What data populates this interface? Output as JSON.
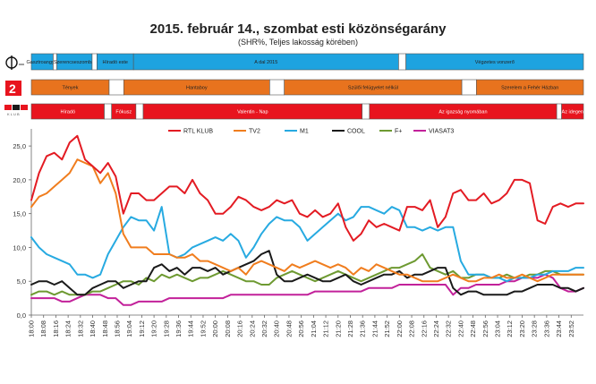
{
  "chart_data": {
    "type": "line",
    "title": "2015. február 14., szombat esti közönségarány",
    "subtitle": "(SHR%, Teljes lakosság körében)",
    "xlabel": "",
    "ylabel": "",
    "ylim": [
      0,
      27
    ],
    "yticks": [
      "0,0",
      "5,0",
      "10,0",
      "15,0",
      "20,0",
      "25,0"
    ],
    "grid": false,
    "legend_position": "top-center",
    "x_tick_labels": [
      "18:00",
      "18:08",
      "18:16",
      "18:24",
      "18:32",
      "18:40",
      "18:48",
      "18:56",
      "19:04",
      "19:12",
      "19:20",
      "19:28",
      "19:36",
      "19:44",
      "19:52",
      "20:00",
      "20:08",
      "20:16",
      "20:24",
      "20:32",
      "20:40",
      "20:48",
      "20:56",
      "21:04",
      "21:12",
      "21:20",
      "21:28",
      "21:36",
      "21:44",
      "21:52",
      "22:00",
      "22:08",
      "22:16",
      "22:24",
      "22:32",
      "22:40",
      "22:48",
      "22:56",
      "23:04",
      "23:12",
      "23:20",
      "23:28",
      "23:36",
      "23:44",
      "23:52"
    ],
    "x_minutes": [
      0,
      5,
      10,
      15,
      20,
      25,
      30,
      35,
      40,
      45,
      50,
      55,
      60,
      65,
      70,
      75,
      80,
      85,
      90,
      95,
      100,
      105,
      110,
      115,
      120,
      125,
      130,
      135,
      140,
      145,
      150,
      155,
      160,
      165,
      170,
      175,
      180,
      185,
      190,
      195,
      200,
      205,
      210,
      215,
      220,
      225,
      230,
      235,
      240,
      245,
      250,
      255,
      260,
      265,
      270,
      275,
      280,
      285,
      290,
      295,
      300,
      305,
      310,
      315,
      320,
      325,
      330,
      335,
      340,
      345,
      350,
      355,
      360
    ],
    "series": [
      {
        "name": "RTL KLUB",
        "color": "#e31b23",
        "values": [
          17,
          21,
          23.5,
          24,
          23,
          25.5,
          26.5,
          23,
          22,
          21,
          22.5,
          20.5,
          15,
          18,
          18,
          17,
          17,
          18,
          19,
          19,
          18,
          20,
          18,
          17,
          15,
          15,
          16,
          17.5,
          17,
          16,
          15.5,
          16,
          17,
          16.5,
          17,
          15,
          14.5,
          15.5,
          14.5,
          15,
          16.5,
          13,
          11,
          12,
          14,
          13,
          13.5,
          13,
          12.5,
          16,
          16,
          15.5,
          17,
          13,
          14.5,
          18,
          18.5,
          17,
          17,
          18,
          16.5,
          17,
          18,
          20,
          20,
          19.5,
          14,
          13.5,
          16,
          16.5,
          16,
          16.5,
          16.5
        ]
      },
      {
        "name": "TV2",
        "color": "#f07d1e",
        "values": [
          16,
          17.5,
          18,
          19,
          20,
          21,
          23,
          22.5,
          22,
          19.5,
          21,
          18,
          12,
          10,
          10,
          10,
          9,
          9,
          9,
          8.5,
          8.5,
          9,
          8,
          8,
          7.5,
          7,
          6.5,
          7,
          6,
          7.5,
          8,
          7.5,
          7,
          6.5,
          7.5,
          7,
          7.5,
          8,
          7.5,
          7,
          7.5,
          7,
          6,
          7,
          6.5,
          7.5,
          7,
          6.5,
          6,
          6,
          5.5,
          5,
          5,
          5,
          5.5,
          6,
          5.5,
          5,
          5,
          5.5,
          5.5,
          6,
          5.5,
          5.5,
          6,
          5.5,
          5,
          5.5,
          6,
          6,
          6,
          6,
          6
        ]
      },
      {
        "name": "M1",
        "color": "#27aae1",
        "values": [
          11.5,
          10,
          9,
          8.5,
          8,
          7.5,
          6,
          6,
          5.5,
          6,
          9,
          11,
          13,
          14.5,
          14,
          14,
          12.5,
          16,
          9,
          8.5,
          9,
          10,
          10.5,
          11,
          11.5,
          11,
          12,
          11,
          8.5,
          10,
          12,
          13.5,
          14.5,
          14,
          14,
          13,
          11,
          12,
          13,
          14,
          15,
          14,
          14.5,
          16,
          16,
          15.5,
          15,
          16,
          15.5,
          13,
          13,
          12.5,
          13,
          12.5,
          13,
          13,
          8,
          6,
          6,
          6,
          5.5,
          5.5,
          5,
          5.5,
          5.5,
          5.5,
          6,
          6,
          6.5,
          6.5,
          6.5,
          7,
          7
        ]
      },
      {
        "name": "COOL",
        "color": "#1a1a1a",
        "values": [
          4.5,
          5,
          5,
          4.5,
          5,
          4,
          3,
          3,
          4,
          4.5,
          5,
          5,
          4,
          4.5,
          5,
          5,
          7,
          7.5,
          6.5,
          7,
          6,
          7,
          7,
          6.5,
          7,
          6,
          6.5,
          7,
          7.5,
          8,
          9,
          9.5,
          6,
          5,
          5,
          5.5,
          6,
          5.5,
          5,
          5,
          5.5,
          6,
          5,
          4.5,
          5,
          5.5,
          6,
          6,
          6.5,
          5.5,
          6,
          6,
          6.5,
          7,
          7,
          4,
          3,
          3.5,
          3.5,
          3,
          3,
          3,
          3,
          3.5,
          3.5,
          4,
          4.5,
          4.5,
          4.5,
          4,
          4,
          3.5,
          4
        ]
      },
      {
        "name": "F+",
        "color": "#6e9a32",
        "values": [
          3,
          3.5,
          3.5,
          3,
          3.5,
          3,
          3,
          3,
          3.5,
          3.5,
          4,
          4.5,
          5,
          5,
          4.5,
          5.5,
          5,
          6,
          5.5,
          6,
          5.5,
          5,
          5.5,
          5.5,
          6,
          6.5,
          6,
          5.5,
          5,
          5,
          4.5,
          4.5,
          5.5,
          6,
          6.5,
          6,
          5.5,
          5,
          5.5,
          6,
          6.5,
          6,
          5.5,
          5,
          5.5,
          6,
          6.5,
          7,
          7,
          7.5,
          8,
          9,
          7,
          6.5,
          6,
          6.5,
          5.5,
          5.5,
          6,
          6,
          5.5,
          5.5,
          6,
          5.5,
          5.5,
          6,
          6,
          6.5,
          6.5,
          6,
          6,
          6,
          6
        ]
      },
      {
        "name": "VIASAT3",
        "color": "#c2219a",
        "values": [
          2.5,
          2.5,
          2.5,
          2.5,
          2,
          2,
          2.5,
          3,
          3,
          3,
          2.5,
          2.5,
          1.5,
          1.5,
          2,
          2,
          2,
          2,
          2.5,
          2.5,
          2.5,
          2.5,
          2.5,
          2.5,
          2.5,
          2.5,
          3,
          3,
          3,
          3,
          3,
          3,
          3,
          3,
          3,
          3,
          3,
          3.5,
          3.5,
          3.5,
          3.5,
          3.5,
          3.5,
          3.5,
          4,
          4,
          4,
          4,
          4.5,
          4.5,
          4.5,
          4.5,
          4.5,
          4.5,
          4.5,
          3,
          4,
          4,
          4.5,
          4.5,
          4.5,
          4.5,
          5,
          5,
          5.5,
          5.5,
          5.5,
          6,
          5.5,
          4,
          3.5,
          3.5,
          4
        ]
      }
    ]
  },
  "program_rows": [
    {
      "channel": "M1",
      "logo_label": "",
      "fill": "#1ea3e0",
      "text_class": "blk-d",
      "blocks": [
        {
          "label": "Gasztroangyal",
          "from": 0,
          "to": 9
        },
        {
          "label": "",
          "from": 9,
          "to": 10.5
        },
        {
          "label": "Szerencseszombat",
          "from": 10.5,
          "to": 25
        },
        {
          "label": "",
          "from": 25,
          "to": 27
        },
        {
          "label": "Híradó este",
          "from": 27,
          "to": 42
        },
        {
          "label": "A dal 2015",
          "from": 42,
          "to": 151
        },
        {
          "label": "",
          "from": 151,
          "to": 154
        },
        {
          "label": "Végzetes vonzerő",
          "from": 154,
          "to": 227
        }
      ]
    },
    {
      "channel": "TV2",
      "logo_label": "",
      "fill": "#e8731e",
      "text_class": "blk-d",
      "blocks": [
        {
          "label": "Tények",
          "from": 0,
          "to": 32
        },
        {
          "label": "",
          "from": 32,
          "to": 38
        },
        {
          "label": "Hantaboy",
          "from": 38,
          "to": 98
        },
        {
          "label": "",
          "from": 98,
          "to": 104
        },
        {
          "label": "Szülői felügyelet nélkül",
          "from": 104,
          "to": 177
        },
        {
          "label": "",
          "from": 177,
          "to": 183
        },
        {
          "label": "Szerelem a Fehér Házban",
          "from": 183,
          "to": 227
        }
      ]
    },
    {
      "channel": "RTL KLUB",
      "logo_label": "RTL",
      "fill": "#e8141e",
      "text_class": "blk",
      "blocks": [
        {
          "label": "Híradó",
          "from": 0,
          "to": 30
        },
        {
          "label": "",
          "from": 30,
          "to": 33
        },
        {
          "label": "Fókusz",
          "from": 33,
          "to": 43
        },
        {
          "label": "",
          "from": 43,
          "to": 46
        },
        {
          "label": "Valentin - Nap",
          "from": 46,
          "to": 136
        },
        {
          "label": "",
          "from": 136,
          "to": 139
        },
        {
          "label": "Az igazság nyomában",
          "from": 139,
          "to": 216
        },
        {
          "label": "",
          "from": 216,
          "to": 218
        },
        {
          "label": "Az idegen",
          "from": 218,
          "to": 227
        }
      ]
    }
  ]
}
